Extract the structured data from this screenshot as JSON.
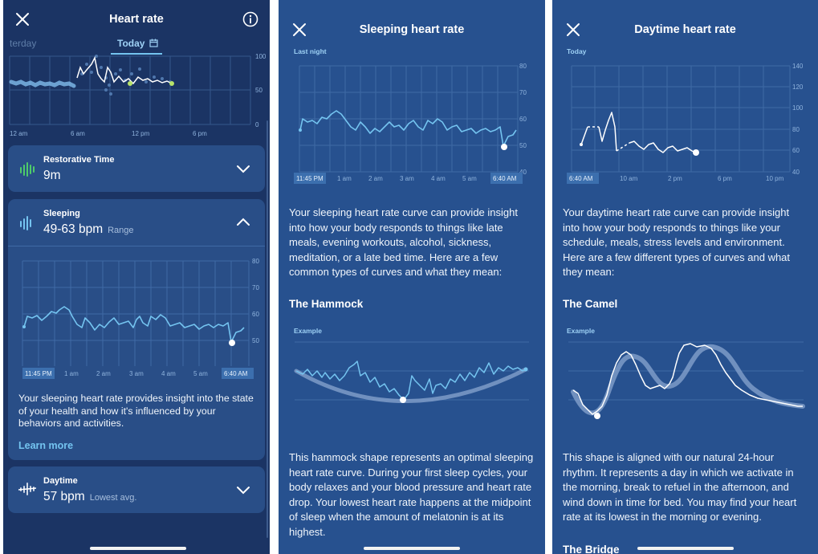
{
  "panel1": {
    "title": "Heart rate",
    "date_prev": "terday",
    "date_today": "Today",
    "overview_chart": {
      "y_ticks": [
        "100",
        "50",
        "0"
      ],
      "x_ticks": [
        "12 am",
        "6 am",
        "12 pm",
        "6 pm"
      ]
    },
    "restorative": {
      "label": "Restorative Time",
      "value": "9m"
    },
    "sleeping": {
      "label": "Sleeping",
      "value": "49-63 bpm",
      "sub": "Range",
      "chart": {
        "y_ticks": [
          "80",
          "70",
          "60",
          "50"
        ],
        "x_ticks": [
          "11:45 PM",
          "1 am",
          "2 am",
          "3 am",
          "4 am",
          "5 am",
          "6:40 AM"
        ]
      },
      "description": "Your sleeping heart rate provides insight into the state of your health and how it's influenced by your behaviors and activities.",
      "learn_more": "Learn more"
    },
    "daytime": {
      "label": "Daytime",
      "value": "57 bpm",
      "sub": "Lowest avg."
    }
  },
  "panel2": {
    "title": "Sleeping heart rate",
    "chart_label": "Last night",
    "chart": {
      "y_ticks": [
        "80",
        "70",
        "60",
        "50",
        "40"
      ],
      "x_ticks": [
        "11:45 PM",
        "1 am",
        "2 am",
        "3 am",
        "4 am",
        "5 am",
        "6:40 AM"
      ]
    },
    "intro": "Your sleeping heart rate curve can provide insight into how your body responds to things like late meals, evening workouts, alcohol, sickness, meditation, or a late bed time. Here are a few common types of curves and what they mean:",
    "section_title": "The Hammock",
    "example_label": "Example",
    "description": "This hammock shape represents an optimal sleeping heart rate curve. During your first sleep cycles, your body relaxes and your blood pressure and heart rate drop. Your lowest heart rate happens at the midpoint of sleep when the amount of melatonin is at its highest."
  },
  "panel3": {
    "title": "Daytime heart rate",
    "chart_label": "Today",
    "chart": {
      "y_ticks": [
        "140",
        "120",
        "100",
        "80",
        "60",
        "40"
      ],
      "x_ticks": [
        "6:40 AM",
        "10 am",
        "2 pm",
        "6 pm",
        "10 pm"
      ]
    },
    "intro": "Your daytime heart rate curve can provide insight into how your body responds to things like your schedule, meals, stress levels and environment. Here are a few different types of curves and what they mean:",
    "section_title": "The Camel",
    "example_label": "Example",
    "description": "This shape is aligned with our natural 24-hour rhythm. It represents a day in which we activate in the morning, break to refuel in the afternoon, and wind down in time for bed. You may find your heart rate at its lowest in the morning or evening.",
    "next_section_title": "The Bridge"
  },
  "colors": {
    "dark_bg": "#1b3464",
    "panel_bg": "#27518f",
    "card_bg": "#294e87",
    "accent_line": "#74c4f0",
    "green": "#4ecb6a"
  }
}
